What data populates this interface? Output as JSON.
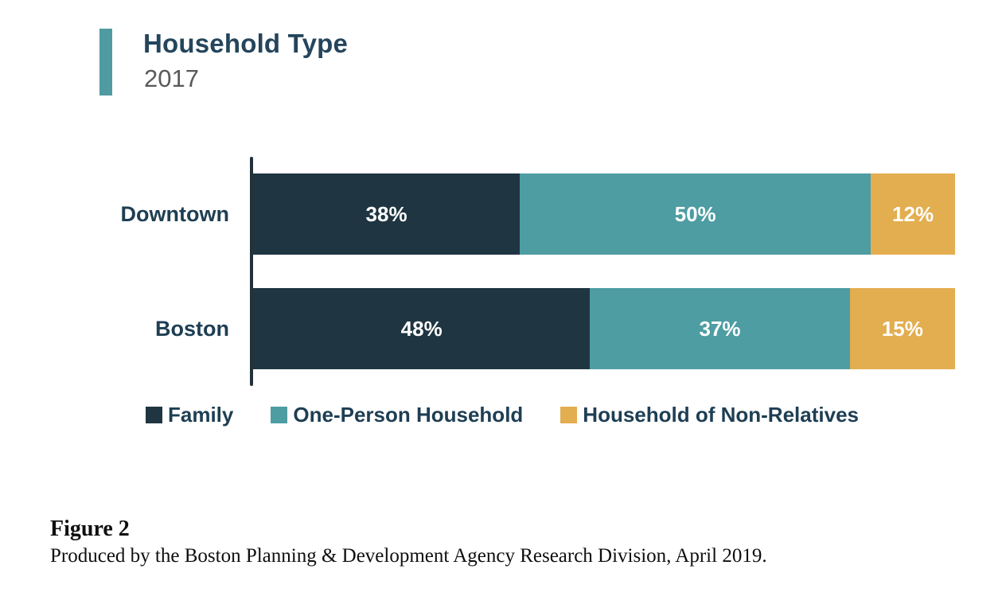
{
  "header": {
    "title": "Household Type",
    "subtitle": "2017"
  },
  "chart_data": {
    "type": "bar",
    "orientation": "horizontal",
    "stacked": true,
    "title": "Household Type",
    "subtitle": "2017",
    "categories": [
      "Downtown",
      "Boston"
    ],
    "series": [
      {
        "name": "Family",
        "color": "#1f3541",
        "values": [
          38,
          48
        ]
      },
      {
        "name": "One-Person Household",
        "color": "#4d9da3",
        "values": [
          50,
          37
        ]
      },
      {
        "name": "Household of Non-Relatives",
        "color": "#e3ae50",
        "values": [
          12,
          15
        ]
      }
    ],
    "data_labels": [
      [
        "38%",
        "50%",
        "12%"
      ],
      [
        "48%",
        "37%",
        "15%"
      ]
    ],
    "value_suffix": "%",
    "xlim": [
      0,
      100
    ],
    "grid": false,
    "legend_position": "bottom"
  },
  "caption": {
    "figure_label": "Figure 2",
    "text": "Produced by the Boston Planning & Development Agency Research Division, April 2019."
  },
  "colors": {
    "accent": "#4f9ba1",
    "title_text": "#24455c",
    "subtitle_text": "#58595b",
    "label_text": "#1e3e53",
    "axis": "#22313a",
    "bar_label_text": "#ffffff",
    "background": "#ffffff"
  }
}
